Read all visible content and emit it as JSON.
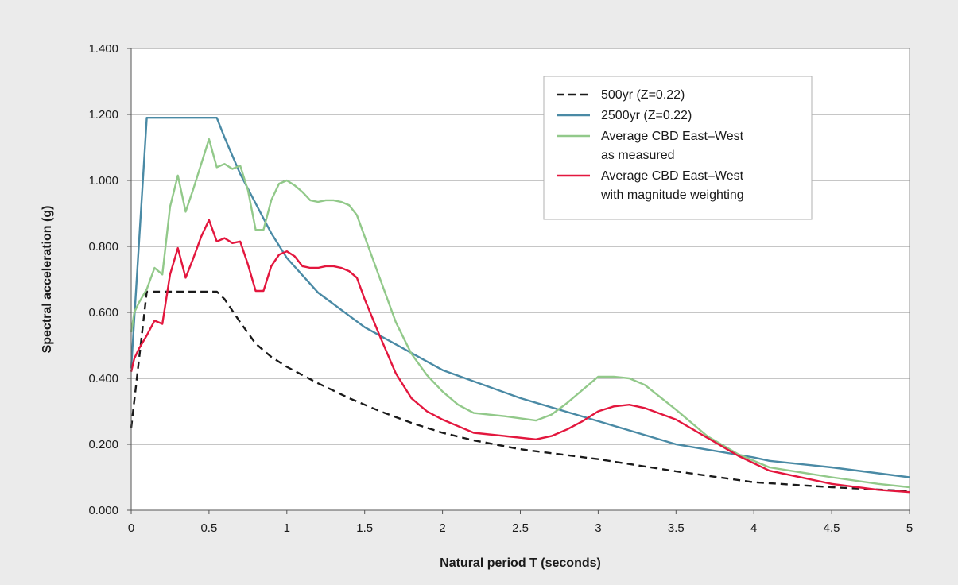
{
  "chart_data": {
    "type": "line",
    "xlabel": "Natural period T (seconds)",
    "ylabel": "Spectral acceleration (g)",
    "xlim": [
      0,
      5
    ],
    "ylim": [
      0,
      1.4
    ],
    "xticks": [
      "0",
      "0.5",
      "1",
      "1.5",
      "2",
      "2.5",
      "3",
      "3.5",
      "4",
      "4.5",
      "5"
    ],
    "yticks": [
      "0.000",
      "0.200",
      "0.400",
      "0.600",
      "0.800",
      "1.000",
      "1.200",
      "1.400"
    ],
    "grid": "horizontal",
    "legend_position": "top-right",
    "series": [
      {
        "name": "500yr (Z=0.22)",
        "line_lines": [
          "500yr (Z=0.22)"
        ],
        "color": "#1a1a1a",
        "style": "dashed",
        "x": [
          0,
          0.1,
          0.2,
          0.3,
          0.4,
          0.5,
          0.55,
          0.6,
          0.7,
          0.8,
          0.9,
          1.0,
          1.2,
          1.4,
          1.6,
          1.8,
          2.0,
          2.2,
          2.5,
          3.0,
          3.5,
          4.0,
          4.5,
          5.0
        ],
        "y": [
          0.25,
          0.663,
          0.663,
          0.663,
          0.663,
          0.663,
          0.663,
          0.64,
          0.57,
          0.505,
          0.465,
          0.435,
          0.385,
          0.34,
          0.3,
          0.265,
          0.235,
          0.212,
          0.185,
          0.155,
          0.118,
          0.085,
          0.07,
          0.058
        ]
      },
      {
        "name": "2500yr (Z=0.22)",
        "line_lines": [
          "2500yr (Z=0.22)"
        ],
        "color": "#4a8aa5",
        "style": "solid",
        "x": [
          0,
          0.1,
          0.2,
          0.3,
          0.4,
          0.5,
          0.55,
          0.6,
          0.7,
          0.8,
          0.9,
          1.0,
          1.2,
          1.5,
          2.0,
          2.5,
          3.0,
          3.5,
          4.0,
          4.1,
          4.5,
          5.0
        ],
        "y": [
          0.43,
          1.19,
          1.19,
          1.19,
          1.19,
          1.19,
          1.19,
          1.13,
          1.02,
          0.93,
          0.84,
          0.765,
          0.66,
          0.555,
          0.425,
          0.34,
          0.27,
          0.2,
          0.16,
          0.15,
          0.13,
          0.1
        ]
      },
      {
        "name": "Average CBD East–West as measured",
        "line_lines": [
          "Average CBD East–West",
          "as measured"
        ],
        "color": "#92c98a",
        "style": "solid",
        "x": [
          0,
          0.02,
          0.05,
          0.1,
          0.15,
          0.2,
          0.25,
          0.3,
          0.35,
          0.4,
          0.45,
          0.5,
          0.55,
          0.6,
          0.65,
          0.7,
          0.75,
          0.8,
          0.85,
          0.9,
          0.95,
          1.0,
          1.05,
          1.1,
          1.15,
          1.2,
          1.25,
          1.3,
          1.35,
          1.4,
          1.45,
          1.5,
          1.6,
          1.7,
          1.8,
          1.9,
          2.0,
          2.1,
          2.2,
          2.4,
          2.6,
          2.7,
          2.8,
          2.9,
          3.0,
          3.1,
          3.2,
          3.3,
          3.5,
          3.7,
          3.9,
          4.1,
          4.5,
          4.8,
          5.0
        ],
        "y": [
          0.54,
          0.6,
          0.63,
          0.67,
          0.735,
          0.715,
          0.92,
          1.015,
          0.905,
          0.975,
          1.05,
          1.125,
          1.04,
          1.05,
          1.035,
          1.045,
          0.97,
          0.85,
          0.85,
          0.94,
          0.99,
          1.0,
          0.985,
          0.965,
          0.94,
          0.935,
          0.94,
          0.94,
          0.935,
          0.925,
          0.895,
          0.83,
          0.7,
          0.57,
          0.475,
          0.41,
          0.36,
          0.32,
          0.295,
          0.285,
          0.272,
          0.29,
          0.325,
          0.365,
          0.405,
          0.405,
          0.4,
          0.38,
          0.305,
          0.225,
          0.17,
          0.13,
          0.1,
          0.08,
          0.07
        ]
      },
      {
        "name": "Average CBD East–West with magnitude weighting",
        "line_lines": [
          "Average CBD East–West",
          "with magnitude weighting"
        ],
        "color": "#e3173e",
        "style": "solid",
        "x": [
          0,
          0.02,
          0.05,
          0.1,
          0.15,
          0.2,
          0.25,
          0.3,
          0.35,
          0.4,
          0.45,
          0.5,
          0.55,
          0.6,
          0.65,
          0.7,
          0.75,
          0.8,
          0.85,
          0.9,
          0.95,
          1.0,
          1.05,
          1.1,
          1.15,
          1.2,
          1.25,
          1.3,
          1.35,
          1.4,
          1.45,
          1.5,
          1.6,
          1.7,
          1.8,
          1.9,
          2.0,
          2.1,
          2.2,
          2.4,
          2.6,
          2.7,
          2.8,
          2.9,
          3.0,
          3.1,
          3.2,
          3.3,
          3.5,
          3.7,
          3.9,
          4.1,
          4.5,
          4.8,
          5.0
        ],
        "y": [
          0.42,
          0.46,
          0.49,
          0.53,
          0.575,
          0.565,
          0.715,
          0.795,
          0.705,
          0.765,
          0.83,
          0.88,
          0.815,
          0.825,
          0.81,
          0.815,
          0.745,
          0.665,
          0.665,
          0.74,
          0.775,
          0.785,
          0.77,
          0.74,
          0.735,
          0.735,
          0.74,
          0.74,
          0.735,
          0.725,
          0.705,
          0.64,
          0.525,
          0.415,
          0.34,
          0.3,
          0.275,
          0.255,
          0.235,
          0.225,
          0.215,
          0.225,
          0.245,
          0.27,
          0.3,
          0.315,
          0.32,
          0.31,
          0.275,
          0.22,
          0.165,
          0.12,
          0.08,
          0.062,
          0.055
        ]
      }
    ]
  }
}
